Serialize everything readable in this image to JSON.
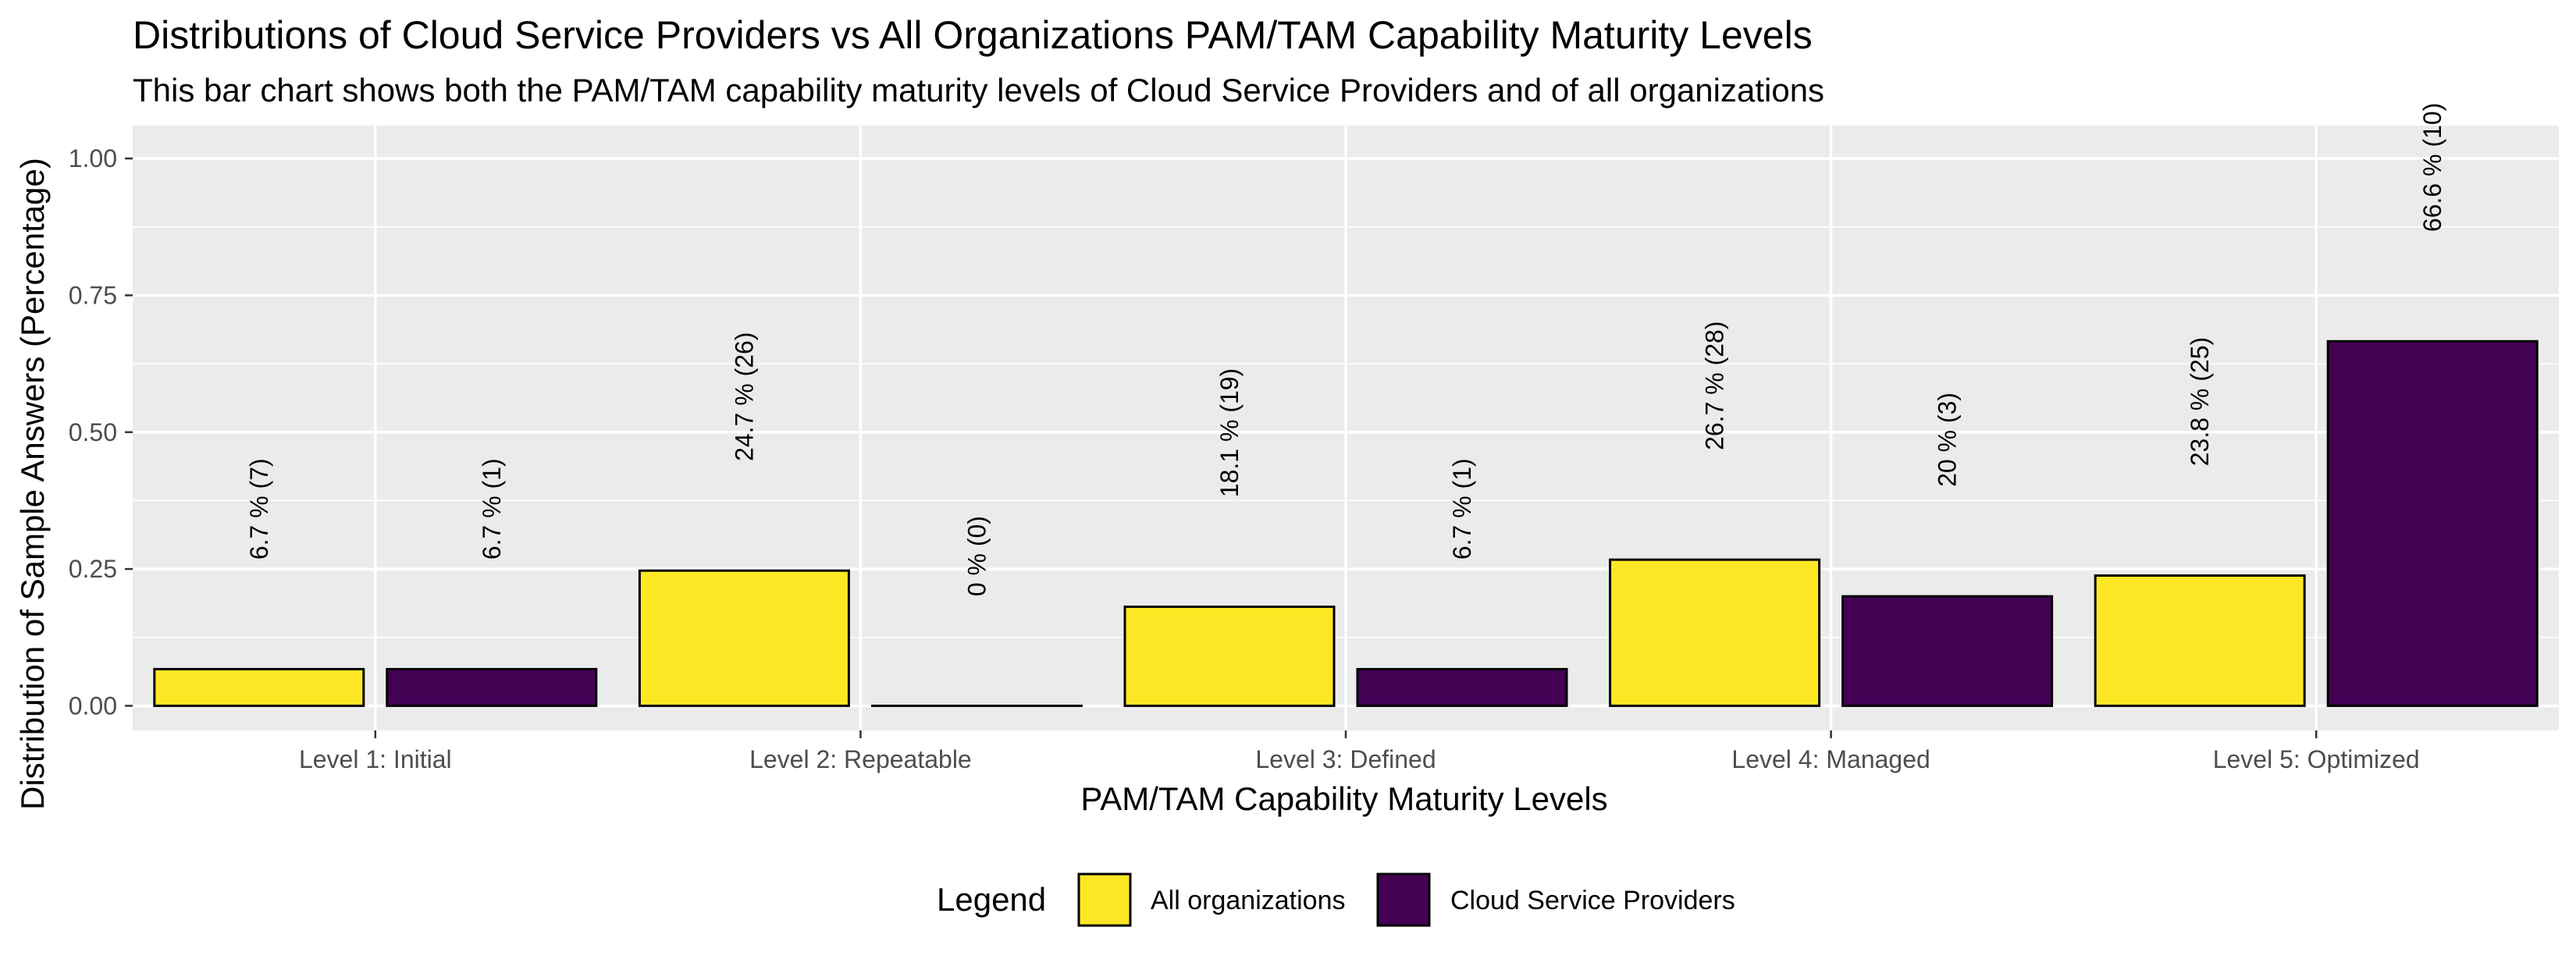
{
  "chart_data": {
    "type": "bar",
    "title": "Distributions of Cloud Service Providers vs All Organizations PAM/TAM Capability Maturity Levels",
    "subtitle": "This bar chart shows both the PAM/TAM capability maturity levels of Cloud Service Providers and of all organizations",
    "xlabel": "PAM/TAM Capability Maturity Levels",
    "ylabel": "Distribution of Sample Answers (Percentage)",
    "ylim": [
      -0.045,
      1.06
    ],
    "yticks": [
      0.0,
      0.25,
      0.5,
      0.75,
      1.0
    ],
    "ytick_labels": [
      "0.00",
      "0.25",
      "0.50",
      "0.75",
      "1.00"
    ],
    "categories": [
      "Level 1: Initial",
      "Level 2: Repeatable",
      "Level 3: Defined",
      "Level 4: Managed",
      "Level 5: Optimized"
    ],
    "series": [
      {
        "name": "All organizations",
        "color": "#FDE725",
        "values": [
          0.067,
          0.247,
          0.181,
          0.267,
          0.238
        ],
        "labels": [
          "6.7 % (7)",
          "24.7 % (26)",
          "18.1 % (19)",
          "26.7 % (28)",
          "23.8 % (25)"
        ]
      },
      {
        "name": "Cloud Service Providers",
        "color": "#440154",
        "values": [
          0.067,
          0.0,
          0.067,
          0.2,
          0.666
        ],
        "labels": [
          "6.7 % (1)",
          "0 % (0)",
          "6.7 % (1)",
          "20 % (3)",
          "66.6 % (10)"
        ]
      }
    ],
    "legend": {
      "title": "Legend",
      "position": "bottom"
    },
    "grid": true,
    "panel_background": "#EBEBEB"
  }
}
